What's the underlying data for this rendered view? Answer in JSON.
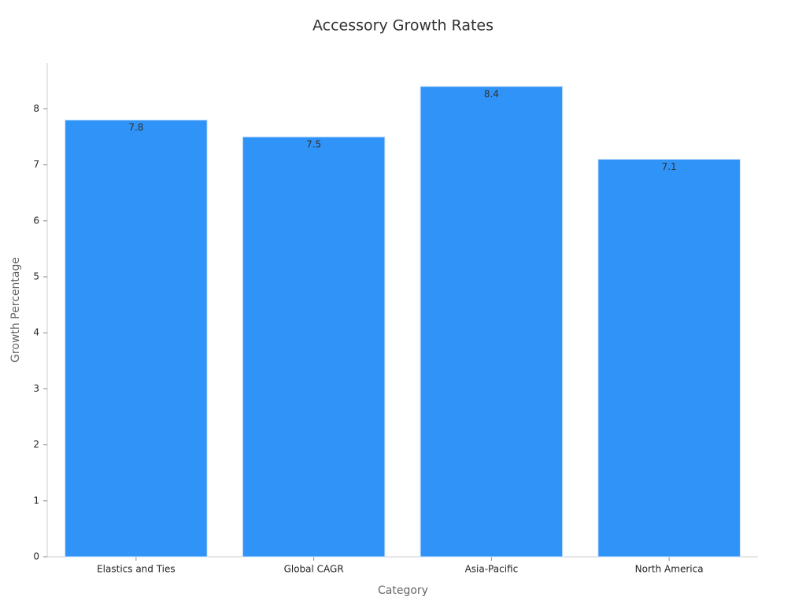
{
  "chart_data": {
    "type": "bar",
    "title": "Accessory Growth Rates",
    "x_label": "Category",
    "y_label": "Growth Percentage",
    "categories": [
      "Elastics and Ties",
      "Global CAGR",
      "Asia-Pacific",
      "North America"
    ],
    "values": [
      7.8,
      7.5,
      8.4,
      7.1
    ],
    "color": "#2f93f8",
    "ylim": [
      0,
      8.82
    ],
    "yticks": [
      0,
      1,
      2,
      3,
      4,
      5,
      6,
      7,
      8
    ],
    "grid": false
  }
}
